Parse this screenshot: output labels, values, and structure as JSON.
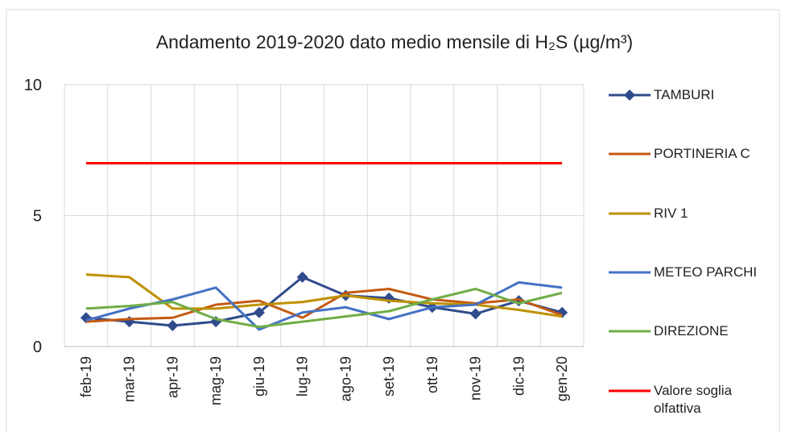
{
  "chart_data": {
    "type": "line",
    "title": "Andamento 2019-2020 dato medio mensile di H₂S (µg/m³)",
    "categories": [
      "feb-19",
      "mar-19",
      "apr-19",
      "mag-19",
      "giu-19",
      "lug-19",
      "ago-19",
      "set-19",
      "ott-19",
      "nov-19",
      "dic-19",
      "gen-20"
    ],
    "series": [
      {
        "name": "TAMBURI",
        "color": "#2f4b8c",
        "marker": "diamond",
        "values": [
          1.1,
          0.95,
          0.8,
          0.95,
          1.3,
          2.65,
          1.95,
          1.85,
          1.5,
          1.25,
          1.75,
          1.3
        ]
      },
      {
        "name": "PORTINERIA C",
        "color": "#c55a11",
        "values": [
          0.95,
          1.05,
          1.1,
          1.6,
          1.75,
          1.1,
          2.05,
          2.2,
          1.8,
          1.65,
          1.8,
          1.2
        ]
      },
      {
        "name": "RIV 1",
        "color": "#bf9000",
        "values": [
          2.75,
          2.65,
          1.45,
          1.45,
          1.6,
          1.7,
          1.95,
          1.75,
          1.65,
          1.6,
          1.4,
          1.15
        ]
      },
      {
        "name": "METEO PARCHI",
        "color": "#4472c4",
        "values": [
          1.0,
          1.45,
          1.8,
          2.25,
          0.65,
          1.3,
          1.5,
          1.05,
          1.5,
          1.6,
          2.45,
          2.25
        ]
      },
      {
        "name": "DIREZIONE",
        "color": "#70ad47",
        "values": [
          1.45,
          1.55,
          1.7,
          1.05,
          0.75,
          0.95,
          1.15,
          1.35,
          1.8,
          2.2,
          1.65,
          2.05
        ]
      },
      {
        "name": "Valore soglia olfattiva",
        "color": "#ff0000",
        "values": [
          7,
          7,
          7,
          7,
          7,
          7,
          7,
          7,
          7,
          7,
          7,
          7
        ]
      }
    ],
    "ylim": [
      0,
      10
    ],
    "yticks": [
      0,
      5,
      10
    ],
    "grid": true,
    "legend": "right"
  }
}
